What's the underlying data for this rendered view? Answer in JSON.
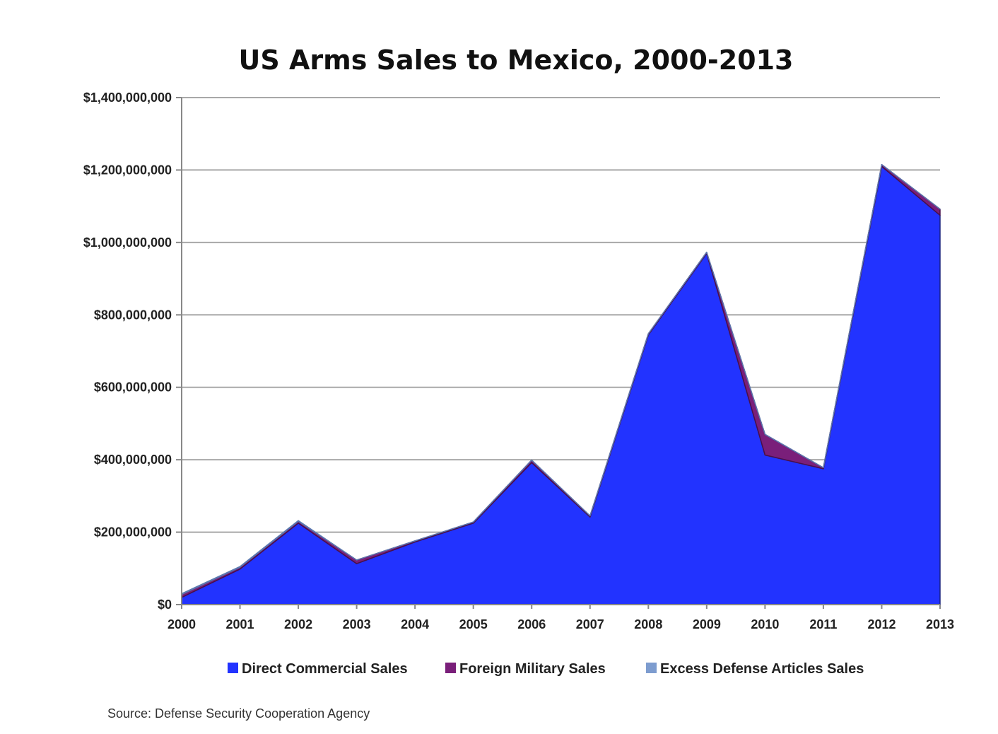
{
  "chart_data": {
    "type": "area",
    "stacked": true,
    "title": "US Arms Sales to Mexico, 2000-2013",
    "xlabel": "",
    "ylabel": "",
    "x": [
      "2000",
      "2001",
      "2002",
      "2003",
      "2004",
      "2005",
      "2006",
      "2007",
      "2008",
      "2009",
      "2010",
      "2011",
      "2012",
      "2013"
    ],
    "ylim": [
      0,
      1400000000
    ],
    "yticks": [
      0,
      200000000,
      400000000,
      600000000,
      800000000,
      1000000000,
      1200000000,
      1400000000
    ],
    "ytick_labels": [
      "$0",
      "$200,000,000",
      "$400,000,000",
      "$600,000,000",
      "$800,000,000",
      "$1,000,000,000",
      "$1,200,000,000",
      "$1,400,000,000"
    ],
    "grid": true,
    "legend_position": "bottom",
    "series": [
      {
        "name": "Direct Commercial Sales",
        "color": "#2233ff",
        "values": [
          20000000,
          98000000,
          225000000,
          113000000,
          173000000,
          225000000,
          392000000,
          242000000,
          745000000,
          970000000,
          413000000,
          375000000,
          1210000000,
          1075000000
        ]
      },
      {
        "name": "Foreign Military Sales",
        "color": "#7a1f7a",
        "values": [
          8000000,
          5000000,
          5000000,
          10000000,
          3000000,
          3000000,
          7000000,
          3000000,
          3000000,
          3000000,
          57000000,
          3000000,
          5000000,
          17000000
        ]
      },
      {
        "name": "Excess Defense Articles Sales",
        "color": "#7d9ccf",
        "values": [
          2000000,
          2000000,
          2000000,
          0,
          0,
          0,
          0,
          0,
          0,
          0,
          0,
          0,
          0,
          0
        ]
      }
    ],
    "source": "Source: Defense Security Cooperation Agency"
  }
}
